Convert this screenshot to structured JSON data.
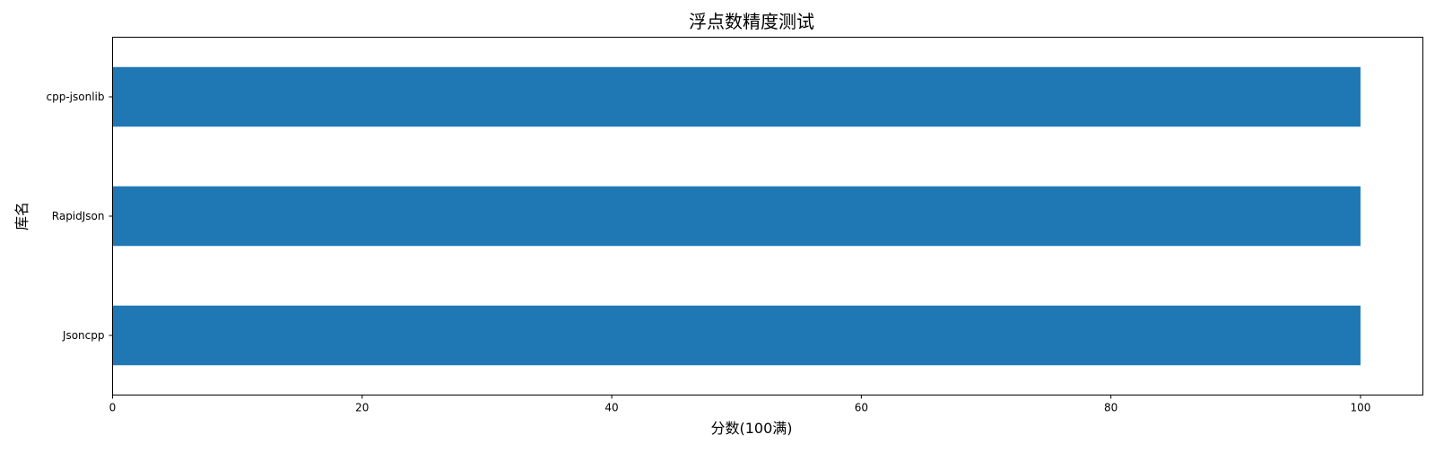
{
  "chart_data": {
    "type": "bar",
    "orientation": "horizontal",
    "title": "浮点数精度测试",
    "xlabel": "分数(100满)",
    "ylabel": "库名",
    "categories": [
      "Jsoncpp",
      "RapidJson",
      "cpp-jsonlib"
    ],
    "values": [
      100,
      100,
      100
    ],
    "xlim": [
      0,
      105
    ],
    "xticks": [
      0,
      20,
      40,
      60,
      80,
      100
    ],
    "grid": false,
    "legend": "none",
    "bar_color": "#1f77b4"
  }
}
